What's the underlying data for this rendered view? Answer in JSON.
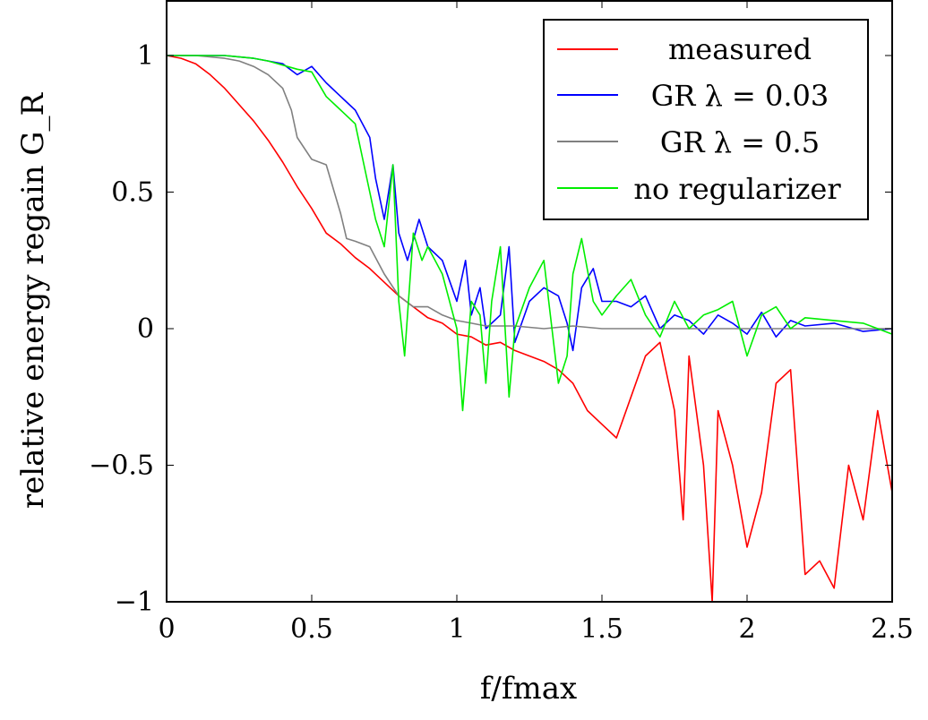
{
  "chart_data": {
    "type": "line",
    "xlabel": "f/fmax",
    "ylabel": "relative energy regain G_R",
    "xlim": [
      0,
      2.5
    ],
    "ylim": [
      -1,
      1.2
    ],
    "xticks": [
      0,
      0.5,
      1,
      1.5,
      2,
      2.5
    ],
    "xtick_labels": [
      "0",
      "0.5",
      "1",
      "1.5",
      "2",
      "2.5"
    ],
    "yticks": [
      -1,
      -0.5,
      0,
      0.5,
      1
    ],
    "ytick_labels": [
      "−1",
      "−0.5",
      "0",
      "0.5",
      "1"
    ],
    "grid": false,
    "legend_position": "top-right",
    "series": [
      {
        "name": "measured",
        "legend_label": "measured",
        "color": "#ff0000",
        "x": [
          0,
          0.05,
          0.1,
          0.15,
          0.2,
          0.25,
          0.3,
          0.35,
          0.4,
          0.45,
          0.5,
          0.55,
          0.6,
          0.65,
          0.7,
          0.75,
          0.8,
          0.85,
          0.9,
          0.95,
          1.0,
          1.05,
          1.1,
          1.15,
          1.2,
          1.25,
          1.3,
          1.35,
          1.4,
          1.45,
          1.5,
          1.55,
          1.6,
          1.65,
          1.7,
          1.75,
          1.78,
          1.8,
          1.85,
          1.88,
          1.9,
          1.95,
          2.0,
          2.05,
          2.1,
          2.15,
          2.2,
          2.25,
          2.3,
          2.35,
          2.4,
          2.45,
          2.5
        ],
        "y": [
          1.0,
          0.99,
          0.97,
          0.93,
          0.88,
          0.82,
          0.76,
          0.69,
          0.61,
          0.52,
          0.44,
          0.35,
          0.31,
          0.26,
          0.22,
          0.17,
          0.12,
          0.08,
          0.04,
          0.02,
          -0.02,
          -0.03,
          -0.06,
          -0.05,
          -0.08,
          -0.1,
          -0.12,
          -0.15,
          -0.2,
          -0.3,
          -0.35,
          -0.4,
          -0.25,
          -0.1,
          -0.05,
          -0.3,
          -0.7,
          -0.1,
          -0.5,
          -1.0,
          -0.3,
          -0.5,
          -0.8,
          -0.6,
          -0.2,
          -0.15,
          -0.9,
          -0.85,
          -0.95,
          -0.5,
          -0.7,
          -0.3,
          -0.6
        ]
      },
      {
        "name": "GR λ = 0.03",
        "legend_label_main": "GR λ = 0.03",
        "color": "#0000ff",
        "x": [
          0,
          0.1,
          0.2,
          0.3,
          0.35,
          0.4,
          0.45,
          0.5,
          0.55,
          0.6,
          0.65,
          0.7,
          0.72,
          0.75,
          0.78,
          0.8,
          0.83,
          0.87,
          0.9,
          0.95,
          1.0,
          1.03,
          1.05,
          1.08,
          1.1,
          1.15,
          1.18,
          1.2,
          1.25,
          1.3,
          1.35,
          1.38,
          1.4,
          1.43,
          1.47,
          1.5,
          1.55,
          1.6,
          1.65,
          1.7,
          1.75,
          1.8,
          1.85,
          1.9,
          1.95,
          2.0,
          2.05,
          2.1,
          2.15,
          2.2,
          2.3,
          2.4,
          2.5
        ],
        "y": [
          1.0,
          1.0,
          1.0,
          0.99,
          0.98,
          0.97,
          0.93,
          0.96,
          0.9,
          0.85,
          0.8,
          0.7,
          0.55,
          0.4,
          0.6,
          0.35,
          0.25,
          0.4,
          0.3,
          0.25,
          0.1,
          0.25,
          0.05,
          0.15,
          0.0,
          0.05,
          0.3,
          -0.05,
          0.1,
          0.15,
          0.12,
          0.02,
          -0.08,
          0.15,
          0.22,
          0.1,
          0.1,
          0.08,
          0.12,
          0.0,
          0.05,
          0.03,
          -0.02,
          0.05,
          0.02,
          -0.02,
          0.06,
          -0.03,
          0.03,
          0.01,
          0.02,
          -0.01,
          0.0
        ]
      },
      {
        "name": "GR λ = 0.5",
        "legend_label_main": "GR λ = 0.5",
        "color": "#808080",
        "x": [
          0,
          0.1,
          0.2,
          0.25,
          0.3,
          0.35,
          0.4,
          0.43,
          0.45,
          0.5,
          0.55,
          0.6,
          0.62,
          0.65,
          0.7,
          0.75,
          0.8,
          0.85,
          0.9,
          0.95,
          1.0,
          1.05,
          1.1,
          1.2,
          1.3,
          1.4,
          1.5,
          1.7,
          2.0,
          2.5
        ],
        "y": [
          1.0,
          1.0,
          0.99,
          0.98,
          0.96,
          0.93,
          0.88,
          0.8,
          0.7,
          0.62,
          0.6,
          0.42,
          0.33,
          0.32,
          0.3,
          0.2,
          0.12,
          0.08,
          0.08,
          0.05,
          0.03,
          0.02,
          0.01,
          0.01,
          0.0,
          0.01,
          0.0,
          0.0,
          0.0,
          0.0
        ]
      },
      {
        "name": "no regularizer",
        "legend_label": "no regularizer",
        "color": "#00ee00",
        "x": [
          0,
          0.1,
          0.2,
          0.3,
          0.35,
          0.45,
          0.5,
          0.55,
          0.6,
          0.65,
          0.68,
          0.7,
          0.72,
          0.75,
          0.78,
          0.8,
          0.82,
          0.85,
          0.88,
          0.9,
          0.95,
          1.0,
          1.02,
          1.05,
          1.08,
          1.1,
          1.12,
          1.15,
          1.18,
          1.2,
          1.25,
          1.3,
          1.35,
          1.38,
          1.4,
          1.43,
          1.47,
          1.5,
          1.55,
          1.6,
          1.65,
          1.7,
          1.75,
          1.8,
          1.85,
          1.9,
          1.95,
          2.0,
          2.05,
          2.1,
          2.15,
          2.2,
          2.3,
          2.4,
          2.5
        ],
        "y": [
          1.0,
          1.0,
          1.0,
          0.99,
          0.98,
          0.95,
          0.94,
          0.85,
          0.8,
          0.75,
          0.6,
          0.5,
          0.4,
          0.3,
          0.6,
          0.1,
          -0.1,
          0.35,
          0.25,
          0.3,
          0.2,
          0.0,
          -0.3,
          0.1,
          0.05,
          -0.2,
          0.1,
          0.3,
          -0.25,
          0.0,
          0.15,
          0.25,
          -0.2,
          -0.1,
          0.2,
          0.33,
          0.1,
          0.05,
          0.12,
          0.18,
          0.05,
          -0.03,
          0.1,
          0.0,
          0.05,
          0.07,
          0.1,
          -0.1,
          0.05,
          0.08,
          0.0,
          0.04,
          0.03,
          0.02,
          -0.02
        ]
      }
    ]
  }
}
